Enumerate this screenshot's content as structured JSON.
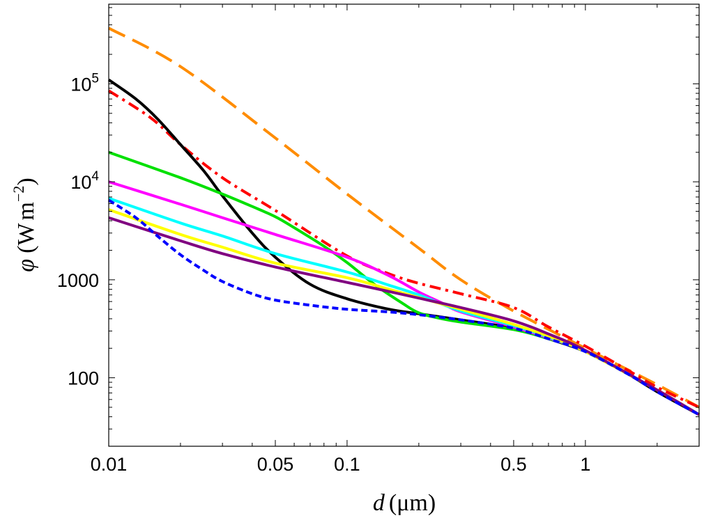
{
  "chart_data": {
    "type": "line",
    "title": "",
    "xscale": "log",
    "yscale": "log",
    "xlim": [
      0.01,
      3.0
    ],
    "ylim": [
      20,
      650000
    ],
    "xlabel": {
      "symbol": "d",
      "unit": "(μm)"
    },
    "ylabel": {
      "symbol": "φ",
      "unit_open": "(W",
      "unit_m": "m",
      "unit_exp": "−2",
      "unit_close": ")"
    },
    "x_ticks": [
      {
        "value": 0.01,
        "label": "0.01"
      },
      {
        "value": 0.05,
        "label": "0.05"
      },
      {
        "value": 0.1,
        "label": "0.1"
      },
      {
        "value": 0.5,
        "label": "0.5"
      },
      {
        "value": 1,
        "label": "1"
      }
    ],
    "y_ticks": [
      {
        "value": 100,
        "label": "100"
      },
      {
        "value": 1000,
        "label": "1000"
      },
      {
        "value": 10000,
        "base": "10",
        "exp": "4"
      },
      {
        "value": 100000,
        "base": "10",
        "exp": "5"
      }
    ],
    "series": [
      {
        "name": "orange-dashed",
        "color": "#ff8c00",
        "dash": "long",
        "x": [
          0.01,
          0.02,
          0.05,
          0.1,
          0.2,
          0.3,
          0.5,
          1,
          2,
          3
        ],
        "y": [
          370000,
          150000,
          28000,
          7500,
          2100,
          1000,
          480,
          200,
          85,
          50
        ]
      },
      {
        "name": "red-dashdot",
        "color": "#ff0000",
        "dash": "dashdot",
        "x": [
          0.01,
          0.015,
          0.02,
          0.03,
          0.05,
          0.1,
          0.15,
          0.2,
          0.3,
          0.5,
          0.7,
          1,
          1.5,
          2,
          3
        ],
        "y": [
          85000,
          45000,
          24000,
          11000,
          5100,
          1750,
          1150,
          920,
          720,
          520,
          330,
          210,
          120,
          80,
          50
        ]
      },
      {
        "name": "black-solid",
        "color": "#000000",
        "dash": "solid",
        "x": [
          0.01,
          0.013,
          0.016,
          0.02,
          0.025,
          0.03,
          0.04,
          0.05,
          0.07,
          0.1,
          0.15,
          0.2,
          0.3,
          0.5,
          0.7,
          1,
          1.5,
          2,
          3
        ],
        "y": [
          110000,
          70000,
          44000,
          24000,
          13000,
          7200,
          3000,
          1700,
          900,
          640,
          500,
          450,
          390,
          320,
          250,
          185,
          110,
          72,
          42
        ]
      },
      {
        "name": "green-solid",
        "color": "#00e000",
        "dash": "solid",
        "x": [
          0.01,
          0.02,
          0.03,
          0.04,
          0.05,
          0.06,
          0.08,
          0.1,
          0.13,
          0.17,
          0.2,
          0.25,
          0.3,
          0.5,
          0.7,
          1,
          2,
          3
        ],
        "y": [
          20000,
          11000,
          7500,
          5600,
          4400,
          3400,
          2200,
          1500,
          900,
          580,
          460,
          400,
          370,
          310,
          250,
          185,
          75,
          42
        ]
      },
      {
        "name": "magenta-solid",
        "color": "#ff00ff",
        "dash": "solid",
        "x": [
          0.01,
          0.02,
          0.03,
          0.05,
          0.1,
          0.15,
          0.2,
          0.25,
          0.3,
          0.5,
          0.7,
          1,
          2,
          3
        ],
        "y": [
          10000,
          5900,
          4300,
          2900,
          1700,
          1100,
          750,
          580,
          470,
          330,
          255,
          185,
          75,
          42
        ]
      },
      {
        "name": "cyan-solid",
        "color": "#00ffff",
        "dash": "solid",
        "x": [
          0.01,
          0.02,
          0.03,
          0.05,
          0.1,
          0.15,
          0.2,
          0.3,
          0.5,
          0.7,
          1,
          2,
          3
        ],
        "y": [
          6800,
          3800,
          2800,
          1850,
          1200,
          880,
          700,
          480,
          340,
          260,
          185,
          75,
          42
        ]
      },
      {
        "name": "yellow-solid",
        "color": "#ffff00",
        "dash": "solid",
        "x": [
          0.01,
          0.02,
          0.03,
          0.05,
          0.1,
          0.15,
          0.2,
          0.3,
          0.5,
          0.7,
          1,
          2,
          3
        ],
        "y": [
          5200,
          2900,
          2150,
          1480,
          1050,
          800,
          660,
          500,
          350,
          265,
          185,
          75,
          42
        ]
      },
      {
        "name": "purple-solid",
        "color": "#800080",
        "dash": "solid",
        "x": [
          0.01,
          0.02,
          0.03,
          0.05,
          0.1,
          0.15,
          0.2,
          0.3,
          0.5,
          0.7,
          1,
          2,
          3
        ],
        "y": [
          4300,
          2500,
          1850,
          1350,
          940,
          760,
          650,
          520,
          380,
          280,
          190,
          75,
          42
        ]
      },
      {
        "name": "blue-dashed",
        "color": "#0000ff",
        "dash": "short",
        "x": [
          0.01,
          0.013,
          0.016,
          0.02,
          0.025,
          0.03,
          0.04,
          0.05,
          0.07,
          0.1,
          0.15,
          0.2,
          0.3,
          0.5,
          0.7,
          1,
          1.5,
          2,
          3
        ],
        "y": [
          6500,
          4300,
          2800,
          1800,
          1250,
          960,
          720,
          620,
          550,
          500,
          470,
          440,
          390,
          320,
          250,
          185,
          110,
          72,
          42
        ]
      }
    ]
  }
}
